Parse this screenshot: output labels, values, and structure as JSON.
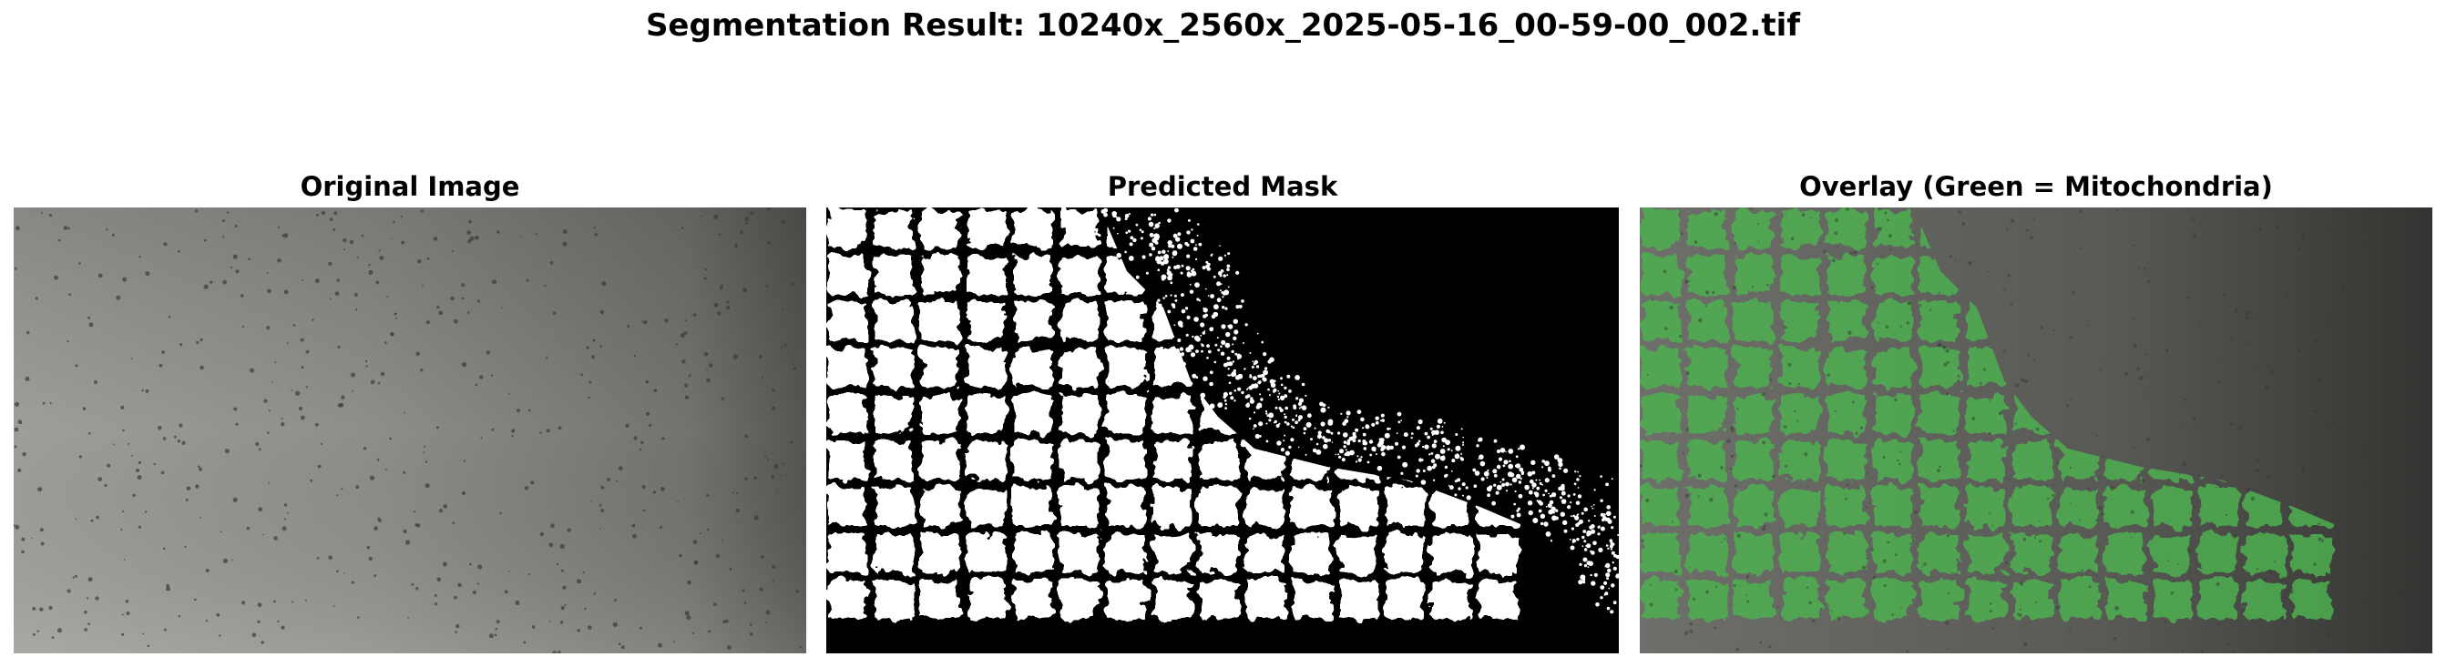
{
  "figure": {
    "suptitle": "Segmentation Result: 10240x_2560x_2025-05-16_00-59-00_002.tif"
  },
  "panels": [
    {
      "title": "Original Image"
    },
    {
      "title": "Predicted Mask"
    },
    {
      "title": "Overlay (Green = Mitochondria)"
    }
  ],
  "colors": {
    "mask_foreground": "#ffffff",
    "mask_background": "#000000",
    "overlay_green": "#4caf50"
  }
}
